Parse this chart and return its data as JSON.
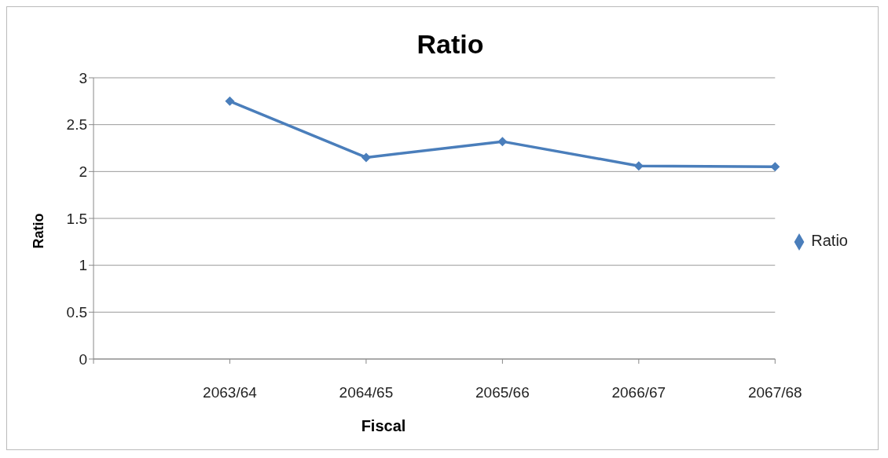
{
  "chart_data": {
    "type": "line",
    "title": "Ratio",
    "xlabel": "Fiscal",
    "ylabel": "Ratio",
    "categories": [
      null,
      "2063/64",
      "2064/65",
      "2065/66",
      "2066/67",
      "2067/68"
    ],
    "series": [
      {
        "name": "Ratio",
        "color": "#4a7ebb",
        "values": [
          null,
          2.75,
          2.15,
          2.32,
          2.06,
          2.05
        ]
      }
    ],
    "ylim": [
      0,
      3
    ],
    "yticks": [
      0,
      0.5,
      1,
      1.5,
      2,
      2.5,
      3
    ],
    "grid": "y",
    "legend": "right",
    "marker": "diamond",
    "line_style": "solid"
  }
}
